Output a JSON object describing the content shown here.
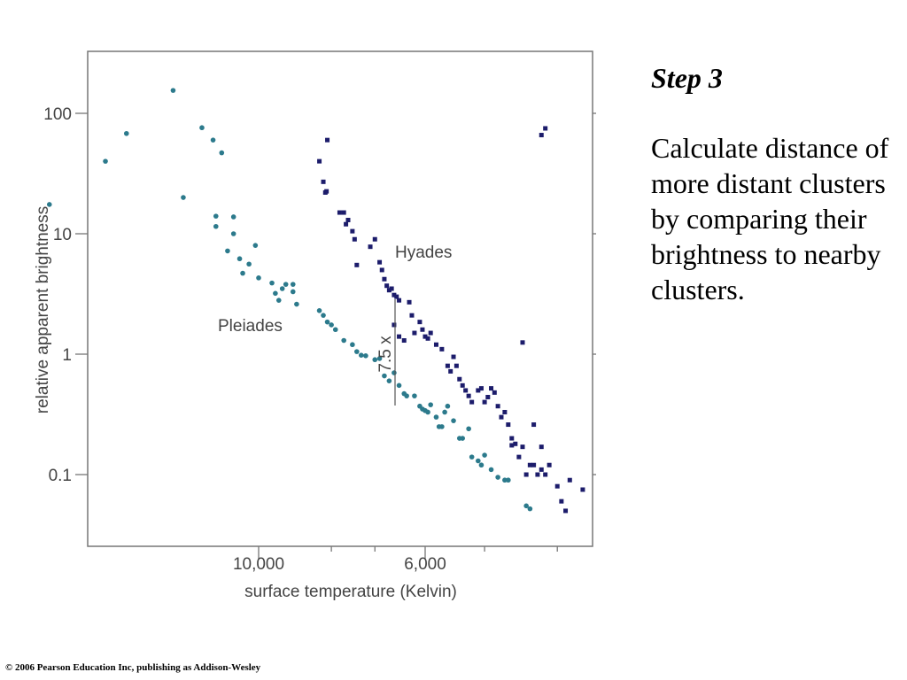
{
  "slide": {
    "step_title": "Step 3",
    "step_body": "Calculate distance of more distant clusters by comparing their brightness to nearby clusters.",
    "footer": "© 2006 Pearson Education Inc, publishing as Addison-Wesley"
  },
  "colors": {
    "pleiades": "#2c7a8c",
    "hyades": "#1c1c6b",
    "frame": "#777777"
  },
  "chart_data": {
    "type": "scatter",
    "xlabel": "surface temperature (Kelvin)",
    "ylabel": "relative apparent brightness",
    "x_tick_labels": [
      {
        "label": "10,000",
        "value": 10000
      },
      {
        "label": "6,000",
        "value": 6000
      }
    ],
    "y_tick_labels": [
      {
        "label": "100",
        "value": 100
      },
      {
        "label": "10",
        "value": 10
      },
      {
        "label": "1",
        "value": 1
      },
      {
        "label": "0.1",
        "value": 0.1
      }
    ],
    "y_scale": "log",
    "ylim": [
      0.033,
      220
    ],
    "annotations": [
      "7.5 x"
    ],
    "series": [
      {
        "name": "Pleiades",
        "points": [
          [
            19000,
            17.5
          ],
          [
            16000,
            40
          ],
          [
            15000,
            68
          ],
          [
            13000,
            155
          ],
          [
            12600,
            20
          ],
          [
            11900,
            76
          ],
          [
            11500,
            60
          ],
          [
            11400,
            14
          ],
          [
            11400,
            11.5
          ],
          [
            11200,
            47
          ],
          [
            11000,
            7.2
          ],
          [
            10800,
            13.8
          ],
          [
            10800,
            10
          ],
          [
            10600,
            6.2
          ],
          [
            10500,
            4.7
          ],
          [
            10300,
            5.6
          ],
          [
            10100,
            8
          ],
          [
            10000,
            4.3
          ],
          [
            9600,
            3.9
          ],
          [
            9500,
            3.2
          ],
          [
            9400,
            2.8
          ],
          [
            9300,
            3.5
          ],
          [
            9200,
            3.8
          ],
          [
            9000,
            3.8
          ],
          [
            9000,
            3.3
          ],
          [
            8900,
            2.6
          ],
          [
            8300,
            2.3
          ],
          [
            8200,
            2.1
          ],
          [
            8100,
            1.85
          ],
          [
            8000,
            1.75
          ],
          [
            7900,
            1.6
          ],
          [
            7700,
            1.3
          ],
          [
            7500,
            1.2
          ],
          [
            7400,
            1.05
          ],
          [
            7300,
            0.98
          ],
          [
            7200,
            0.97
          ],
          [
            7000,
            0.9
          ],
          [
            6900,
            0.92
          ],
          [
            6800,
            0.66
          ],
          [
            6700,
            0.6
          ],
          [
            6600,
            0.7
          ],
          [
            6500,
            0.55
          ],
          [
            6400,
            0.47
          ],
          [
            6350,
            0.45
          ],
          [
            6200,
            0.45
          ],
          [
            6100,
            0.37
          ],
          [
            6050,
            0.35
          ],
          [
            6000,
            0.34
          ],
          [
            5950,
            0.33
          ],
          [
            5900,
            0.38
          ],
          [
            5800,
            0.3
          ],
          [
            5750,
            0.25
          ],
          [
            5700,
            0.25
          ],
          [
            5650,
            0.33
          ],
          [
            5600,
            0.37
          ],
          [
            5500,
            0.28
          ],
          [
            5400,
            0.2
          ],
          [
            5350,
            0.2
          ],
          [
            5250,
            0.24
          ],
          [
            5200,
            0.14
          ],
          [
            5100,
            0.13
          ],
          [
            5050,
            0.12
          ],
          [
            5000,
            0.145
          ],
          [
            4900,
            0.11
          ],
          [
            4800,
            0.095
          ],
          [
            4700,
            0.09
          ],
          [
            4650,
            0.09
          ],
          [
            4400,
            0.055
          ],
          [
            4350,
            0.052
          ]
        ]
      },
      {
        "name": "Hyades",
        "points": [
          [
            8300,
            40
          ],
          [
            8200,
            27
          ],
          [
            8150,
            22
          ],
          [
            8120,
            22.5
          ],
          [
            8100,
            60
          ],
          [
            7800,
            15
          ],
          [
            7700,
            15
          ],
          [
            7650,
            12
          ],
          [
            7600,
            13
          ],
          [
            7500,
            10.5
          ],
          [
            7450,
            9
          ],
          [
            7400,
            5.5
          ],
          [
            7100,
            7.8
          ],
          [
            7000,
            9
          ],
          [
            6900,
            5.8
          ],
          [
            6850,
            5
          ],
          [
            6800,
            4.2
          ],
          [
            6750,
            3.7
          ],
          [
            6700,
            3.4
          ],
          [
            6650,
            3.5
          ],
          [
            6600,
            3.1
          ],
          [
            6550,
            3
          ],
          [
            6500,
            2.8
          ],
          [
            6600,
            1.75
          ],
          [
            6500,
            1.4
          ],
          [
            6400,
            1.3
          ],
          [
            6300,
            2.7
          ],
          [
            6250,
            2.1
          ],
          [
            6200,
            1.5
          ],
          [
            6100,
            1.85
          ],
          [
            6050,
            1.6
          ],
          [
            6000,
            1.4
          ],
          [
            5950,
            1.35
          ],
          [
            5900,
            1.5
          ],
          [
            5800,
            1.2
          ],
          [
            5700,
            1.1
          ],
          [
            5600,
            0.8
          ],
          [
            5550,
            0.72
          ],
          [
            5500,
            0.95
          ],
          [
            5450,
            0.8
          ],
          [
            5400,
            0.62
          ],
          [
            5350,
            0.55
          ],
          [
            5300,
            0.5
          ],
          [
            5250,
            0.45
          ],
          [
            5200,
            0.4
          ],
          [
            5100,
            0.5
          ],
          [
            5050,
            0.52
          ],
          [
            5000,
            0.4
          ],
          [
            4950,
            0.44
          ],
          [
            4900,
            0.52
          ],
          [
            4850,
            0.48
          ],
          [
            4800,
            0.37
          ],
          [
            4750,
            0.3
          ],
          [
            4700,
            0.33
          ],
          [
            4650,
            0.26
          ],
          [
            4600,
            0.2
          ],
          [
            4550,
            0.18
          ],
          [
            4500,
            0.14
          ],
          [
            4450,
            0.17
          ],
          [
            4400,
            0.1
          ],
          [
            4350,
            0.12
          ],
          [
            4300,
            0.12
          ],
          [
            4250,
            0.1
          ],
          [
            4200,
            0.11
          ],
          [
            4150,
            0.1
          ],
          [
            4100,
            0.12
          ],
          [
            4000,
            0.08
          ],
          [
            3950,
            0.06
          ],
          [
            3900,
            0.05
          ],
          [
            3850,
            0.09
          ],
          [
            3700,
            0.075
          ],
          [
            4450,
            1.25
          ],
          [
            4200,
            66
          ],
          [
            4150,
            75
          ],
          [
            4600,
            0.175
          ],
          [
            4300,
            0.26
          ],
          [
            4200,
            0.17
          ]
        ]
      }
    ]
  }
}
